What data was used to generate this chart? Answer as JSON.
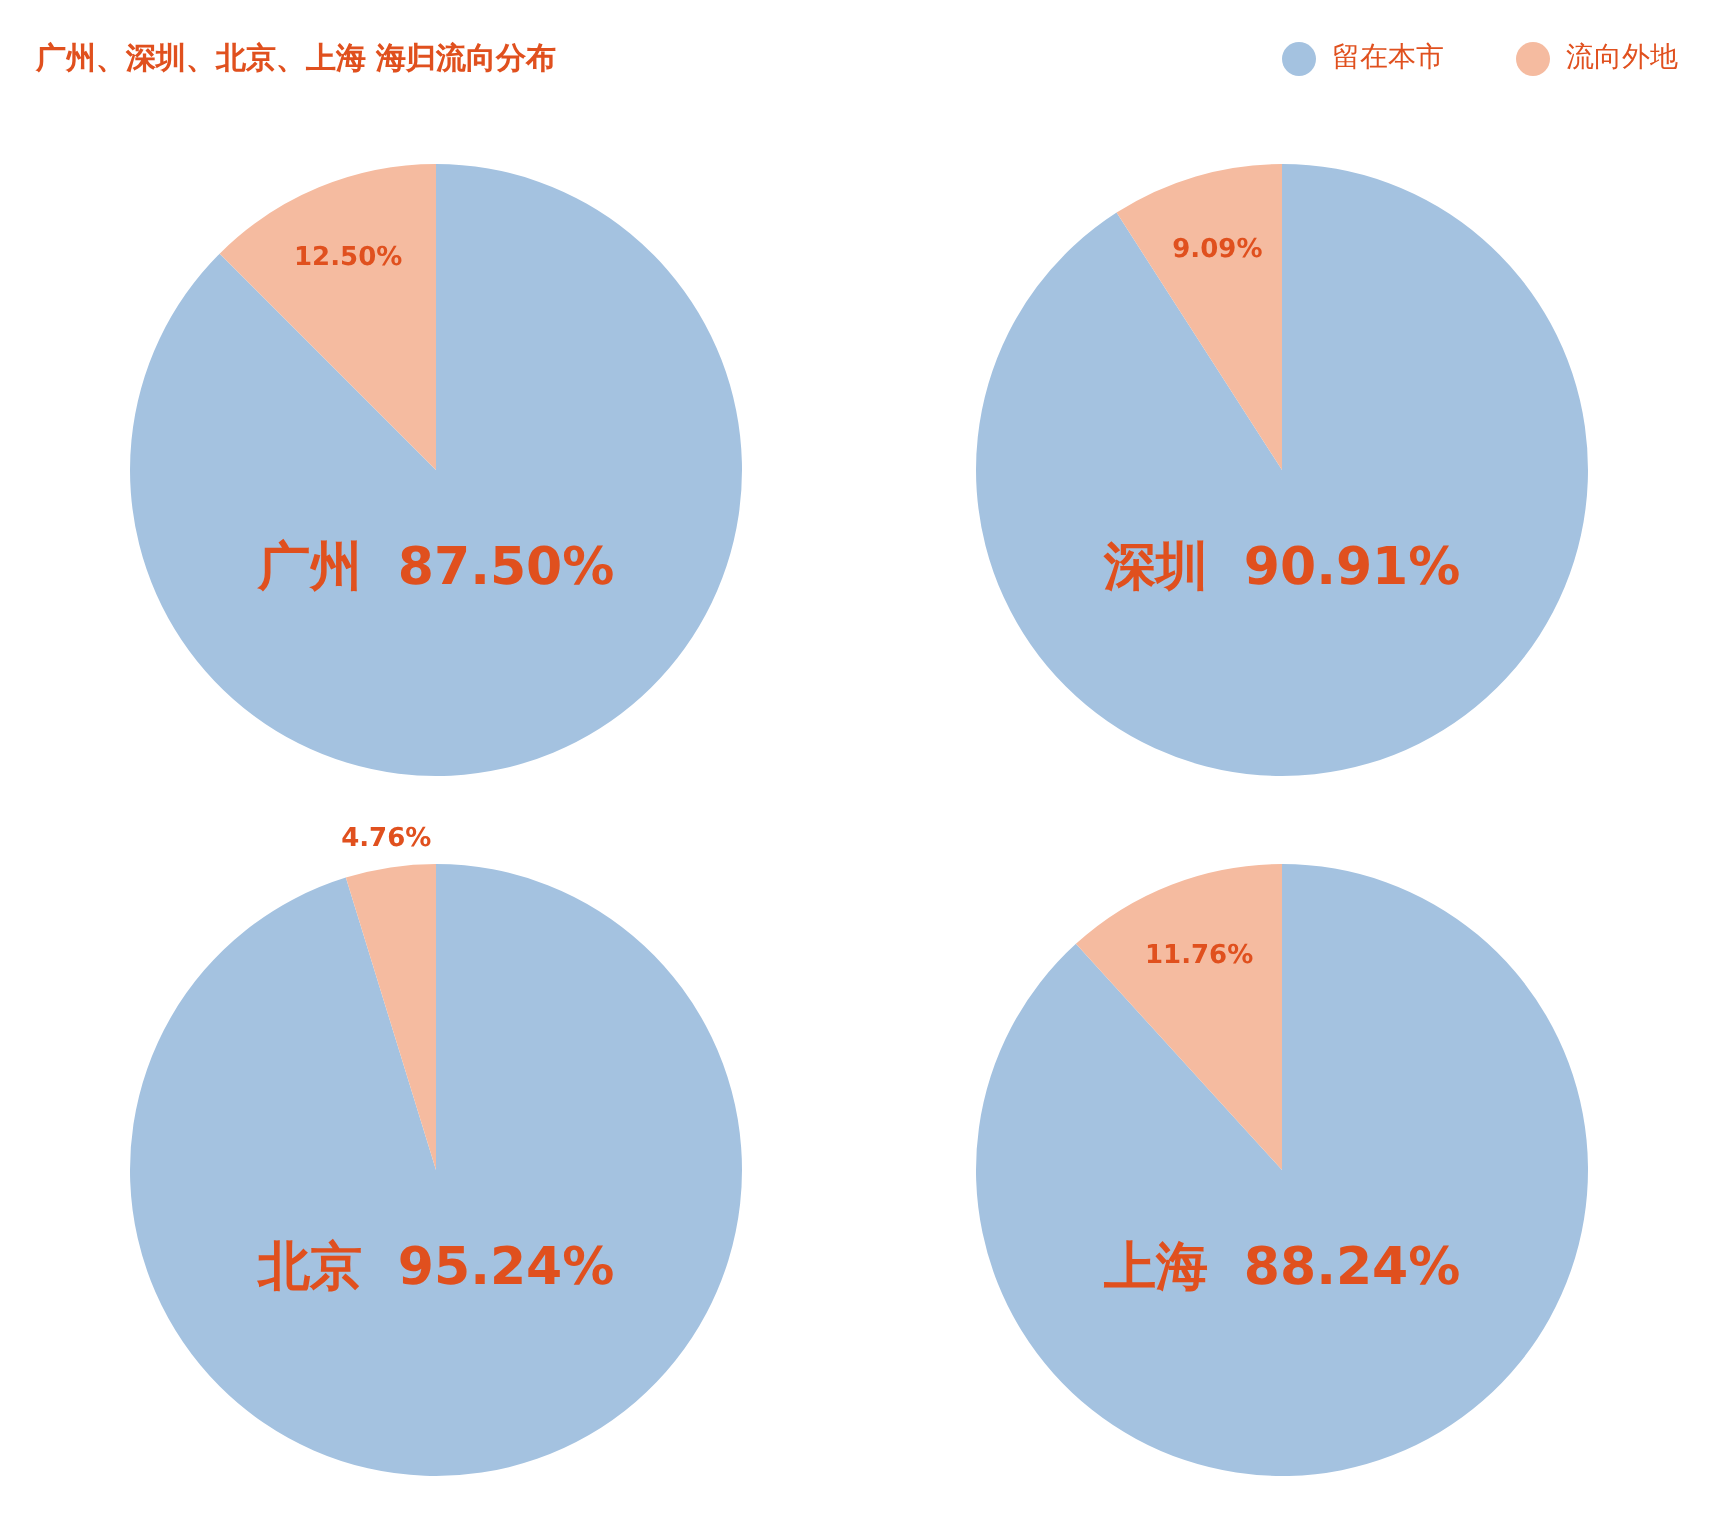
{
  "chart_data": [
    {
      "type": "pie",
      "title": "广州、深圳、北京、上海 海归流向分布",
      "legend": "top right",
      "categories": [
        "留在本市",
        "流向外地"
      ],
      "values": [
        87.5,
        12.5
      ],
      "colors": [
        "#a4c2e0",
        "#f5bba0"
      ],
      "value_labels": [
        "87.50%",
        "12.50%"
      ],
      "annotations": [
        "广州"
      ]
    },
    {
      "type": "pie",
      "categories": [
        null,
        null
      ],
      "values": [
        90.91,
        9.09
      ],
      "colors": [
        "#a4c2e0",
        "#f5bba0"
      ],
      "value_labels": [
        "90.91%",
        "9.09%"
      ],
      "annotations": [
        "深圳"
      ]
    },
    {
      "type": "pie",
      "categories": [
        null,
        null
      ],
      "values": [
        95.24,
        4.76
      ],
      "colors": [
        "#a4c2e0",
        "#f5bba0"
      ],
      "value_labels": [
        "95.24%",
        "4.76%"
      ],
      "annotations": [
        "北京"
      ]
    },
    {
      "type": "pie",
      "categories": [
        null,
        null
      ],
      "values": [
        88.24,
        11.76
      ],
      "colors": [
        "#a4c2e0",
        "#f5bba0"
      ],
      "value_labels": [
        "88.24%",
        "11.76%"
      ],
      "annotations": [
        "上海"
      ]
    }
  ]
}
